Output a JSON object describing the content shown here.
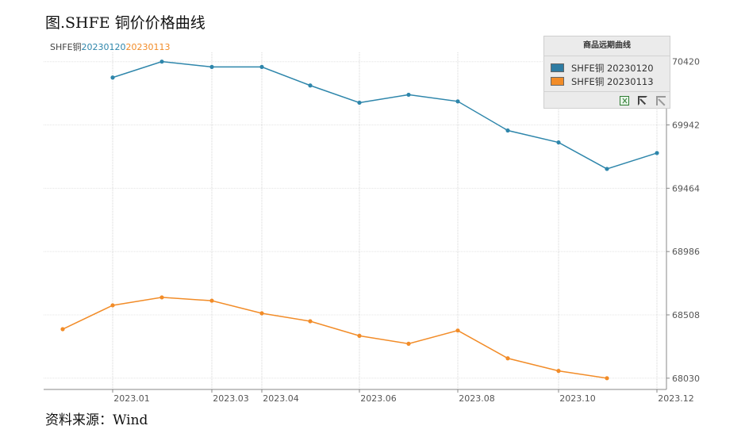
{
  "figure_title": "图.SHFE 铜价价格曲线",
  "source_text": "资料来源：Wind",
  "subtitle_parts": [
    {
      "text": "SHFE铜",
      "color": "#444444"
    },
    {
      "text": "20230120",
      "color": "#2e86ab"
    },
    {
      "text": "20230113",
      "color": "#f28c28"
    }
  ],
  "legend": {
    "title": "商品远期曲线",
    "tools": [
      "excel-export-icon",
      "crop-icon",
      "expand-icon"
    ]
  },
  "chart_data": {
    "type": "line",
    "x_labels": [
      "2023.01",
      "2023.03",
      "2023.04",
      "2023.06",
      "2023.08",
      "2023.10",
      "2023.12"
    ],
    "x": [
      "2022.12",
      "2023.01",
      "2023.02",
      "2023.03",
      "2023.04",
      "2023.05",
      "2023.06",
      "2023.07",
      "2023.08",
      "2023.09",
      "2023.10",
      "2023.11",
      "2023.12"
    ],
    "y_ticks": [
      70420,
      69942,
      69464,
      68986,
      68508,
      68030
    ],
    "ylim": [
      67945,
      70490
    ],
    "grid": true,
    "legend_position": "top-right",
    "series": [
      {
        "name": "SHFE铜 20230120",
        "color": "#2e86ab",
        "values": [
          null,
          70300,
          70420,
          70380,
          70380,
          70240,
          70110,
          70170,
          70120,
          69900,
          69810,
          69610,
          69730
        ]
      },
      {
        "name": "SHFE铜 20230113",
        "color": "#f28c28",
        "values": [
          68400,
          68580,
          68640,
          68615,
          68520,
          68460,
          68350,
          68290,
          68390,
          68180,
          68085,
          68030,
          null
        ]
      }
    ]
  }
}
